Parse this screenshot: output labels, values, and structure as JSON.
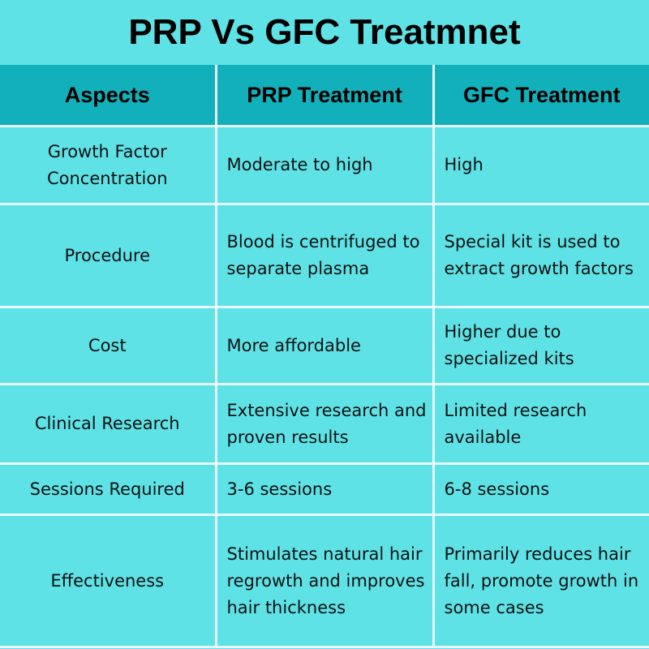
{
  "title": "PRP Vs GFC Treatmnet",
  "table": {
    "headers": [
      "Aspects",
      "PRP Treatment",
      "GFC Treatment"
    ],
    "rows": [
      {
        "aspect": "Growth Factor Concentration",
        "prp": "Moderate to high",
        "gfc": "High"
      },
      {
        "aspect": "Procedure",
        "prp": "Blood is centrifuged to separate plasma",
        "gfc": "Special kit is used to extract growth factors"
      },
      {
        "aspect": "Cost",
        "prp": "More affordable",
        "gfc": "Higher due to specialized kits"
      },
      {
        "aspect": "Clinical Research",
        "prp": "Extensive research and proven results",
        "gfc": "Limited research available"
      },
      {
        "aspect": "Sessions Required",
        "prp": "3-6 sessions",
        "gfc": "6-8 sessions"
      },
      {
        "aspect": "Effectiveness",
        "prp": "Stimulates natural hair regrowth and improves hair thickness",
        "gfc": "Primarily reduces hair fall, promote growth in some cases"
      }
    ]
  },
  "colors": {
    "background": "#5ee2e6",
    "header": "#12b0bb",
    "border": "#e8f9fb"
  }
}
